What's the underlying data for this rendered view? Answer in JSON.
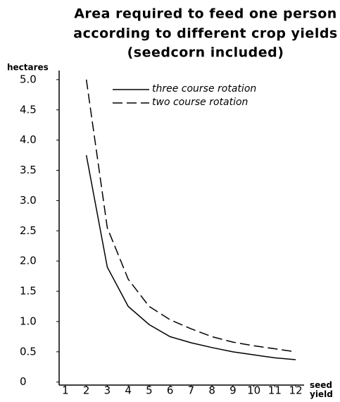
{
  "chart_data": {
    "type": "line",
    "title": [
      "Area required to feed one person",
      "according to different crop yields",
      "(seedcorn included)"
    ],
    "ylabel": "hectares",
    "xlabel": "seed yield",
    "x": [
      2,
      3,
      4,
      5,
      6,
      7,
      8,
      9,
      10,
      11,
      12
    ],
    "series": [
      {
        "name": "three course rotation",
        "color": "#000000",
        "dash": false,
        "values": [
          3.75,
          1.9,
          1.25,
          0.95,
          0.75,
          0.65,
          0.57,
          0.5,
          0.45,
          0.4,
          0.37
        ]
      },
      {
        "name": "two course rotation",
        "color": "#000000",
        "dash": true,
        "values": [
          5.0,
          2.55,
          1.7,
          1.25,
          1.03,
          0.88,
          0.75,
          0.66,
          0.6,
          0.55,
          0.5
        ]
      }
    ],
    "xlim": [
      0.7,
      12.4
    ],
    "xticks": [
      1,
      2,
      3,
      4,
      5,
      6,
      7,
      8,
      9,
      10,
      11,
      12
    ],
    "ylim": [
      -0.05,
      5.15
    ],
    "yticks": [
      0,
      0.5,
      {
        "value": 1,
        "label": "1.0"
      },
      1.5,
      {
        "value": 2,
        "label": "2.0"
      },
      2.5,
      {
        "value": 3,
        "label": "3.0"
      },
      3.5,
      {
        "value": 4,
        "label": "4.0"
      },
      4.5,
      {
        "value": 5,
        "label": "5.0"
      }
    ],
    "grid": false,
    "legend": "top"
  }
}
